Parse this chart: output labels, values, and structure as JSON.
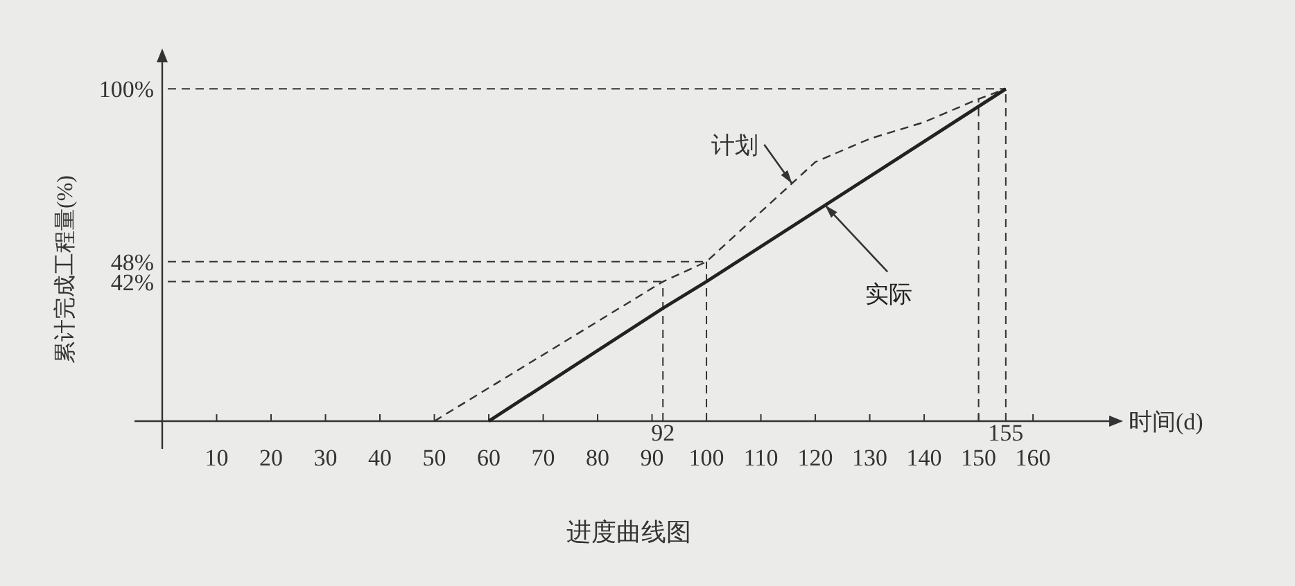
{
  "chart_data": {
    "type": "line",
    "title": "进度曲线图",
    "xlabel": "时间(d)",
    "ylabel": "累计完成工程量(%)",
    "xlim": [
      0,
      174
    ],
    "ylim": [
      0,
      108
    ],
    "xticks": [
      10,
      20,
      30,
      40,
      50,
      60,
      70,
      80,
      90,
      100,
      110,
      120,
      130,
      140,
      150,
      160
    ],
    "yticks": [
      {
        "value": 42,
        "label": "42%"
      },
      {
        "value": 48,
        "label": "48%"
      },
      {
        "value": 100,
        "label": "100%"
      }
    ],
    "series": [
      {
        "name": "计划",
        "color": "#333333",
        "line_style": "dashed",
        "x": [
          50,
          92,
          100,
          110,
          120,
          130,
          140,
          150,
          155
        ],
        "values": [
          0,
          42,
          48,
          63,
          78,
          85,
          90,
          97,
          100
        ]
      },
      {
        "name": "实际",
        "color": "#222222",
        "line_style": "solid",
        "x": [
          60,
          92,
          100,
          155
        ],
        "values": [
          0,
          34,
          42,
          100
        ]
      }
    ],
    "ref_lines": [
      {
        "axis": "y",
        "value": 42,
        "label": null
      },
      {
        "axis": "y",
        "value": 48,
        "label": null
      },
      {
        "axis": "y",
        "value": 100,
        "label": null
      },
      {
        "axis": "x",
        "value": 92,
        "label": "92"
      },
      {
        "axis": "x",
        "value": 100,
        "label": null
      },
      {
        "axis": "x",
        "value": 150,
        "label": null
      },
      {
        "axis": "x",
        "value": 155,
        "label": "155"
      }
    ],
    "legend": false,
    "marker": "none",
    "grid": false
  }
}
